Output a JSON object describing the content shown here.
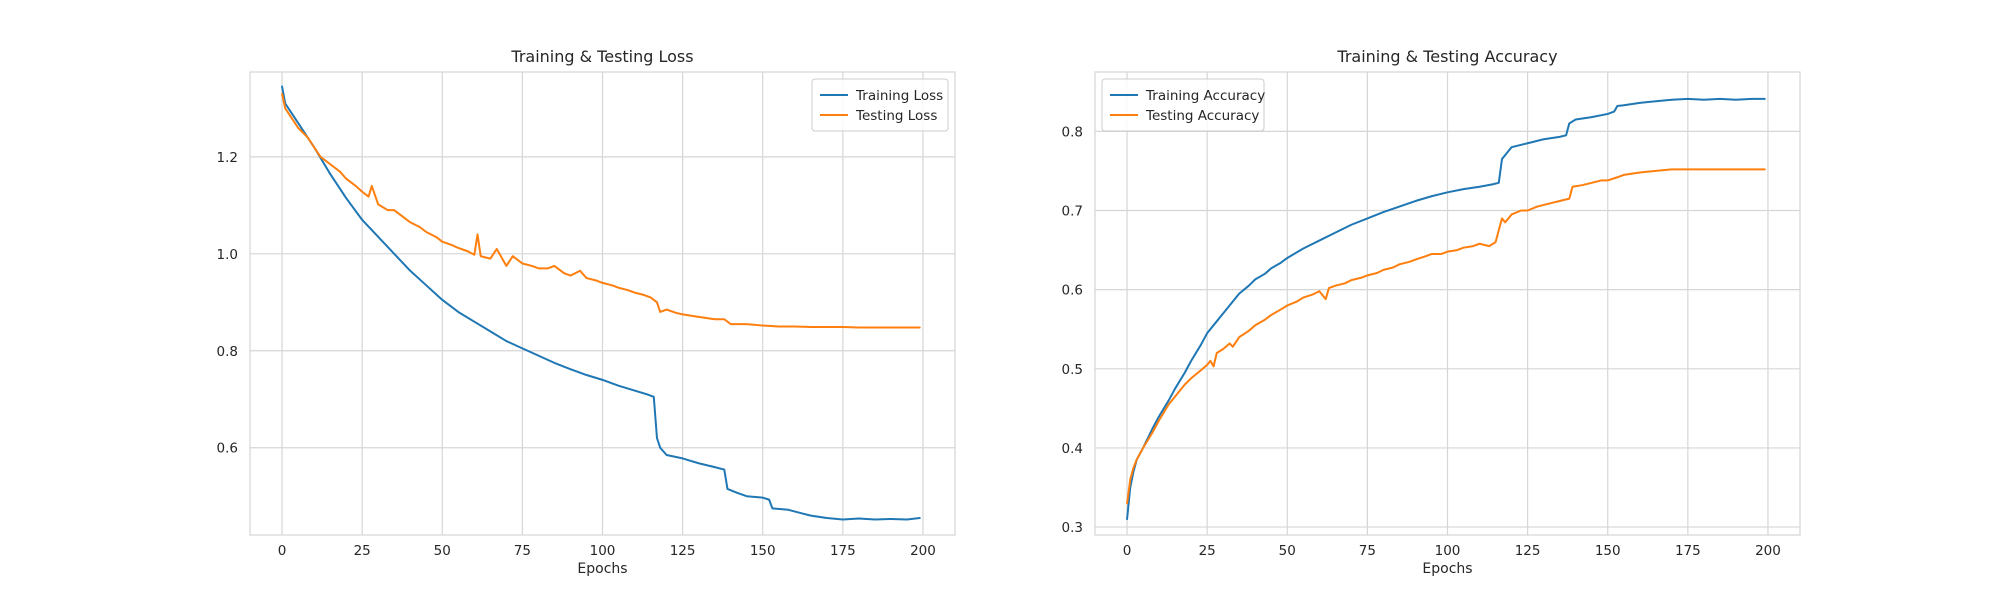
{
  "colors": {
    "training": "#1f77b4",
    "testing": "#ff7f0e",
    "grid": "#d6d6d6",
    "background": "#ffffff"
  },
  "chart_data": [
    {
      "type": "line",
      "title": "Training & Testing Loss",
      "xlabel": "Epochs",
      "ylabel": "",
      "xlim": [
        -10,
        210
      ],
      "ylim": [
        0.42,
        1.375
      ],
      "xticks": [
        0,
        25,
        50,
        75,
        100,
        125,
        150,
        175,
        200
      ],
      "yticks": [
        0.6,
        0.8,
        1.0,
        1.2
      ],
      "ytick_labels": [
        "0.6",
        "0.8",
        "1.0",
        "1.2"
      ],
      "grid": true,
      "legend": "top-right",
      "series": [
        {
          "name": "Training Loss",
          "color": "#1f77b4",
          "points": [
            [
              0,
              1.345
            ],
            [
              1,
              1.31
            ],
            [
              2,
              1.3
            ],
            [
              5,
              1.27
            ],
            [
              10,
              1.22
            ],
            [
              15,
              1.165
            ],
            [
              20,
              1.115
            ],
            [
              25,
              1.07
            ],
            [
              30,
              1.035
            ],
            [
              35,
              1.0
            ],
            [
              40,
              0.965
            ],
            [
              45,
              0.935
            ],
            [
              50,
              0.905
            ],
            [
              55,
              0.88
            ],
            [
              60,
              0.86
            ],
            [
              65,
              0.84
            ],
            [
              70,
              0.82
            ],
            [
              75,
              0.805
            ],
            [
              80,
              0.79
            ],
            [
              85,
              0.775
            ],
            [
              90,
              0.762
            ],
            [
              95,
              0.75
            ],
            [
              100,
              0.74
            ],
            [
              105,
              0.728
            ],
            [
              110,
              0.718
            ],
            [
              114,
              0.71
            ],
            [
              116,
              0.705
            ],
            [
              117,
              0.62
            ],
            [
              118,
              0.6
            ],
            [
              120,
              0.585
            ],
            [
              125,
              0.578
            ],
            [
              130,
              0.568
            ],
            [
              135,
              0.56
            ],
            [
              138,
              0.555
            ],
            [
              139,
              0.515
            ],
            [
              142,
              0.507
            ],
            [
              145,
              0.5
            ],
            [
              150,
              0.497
            ],
            [
              152,
              0.493
            ],
            [
              153,
              0.475
            ],
            [
              158,
              0.472
            ],
            [
              162,
              0.465
            ],
            [
              165,
              0.46
            ],
            [
              170,
              0.455
            ],
            [
              175,
              0.452
            ],
            [
              180,
              0.454
            ],
            [
              185,
              0.452
            ],
            [
              190,
              0.453
            ],
            [
              195,
              0.452
            ],
            [
              199,
              0.455
            ]
          ]
        },
        {
          "name": "Testing Loss",
          "color": "#ff7f0e",
          "points": [
            [
              0,
              1.33
            ],
            [
              1,
              1.3
            ],
            [
              3,
              1.28
            ],
            [
              5,
              1.26
            ],
            [
              8,
              1.24
            ],
            [
              10,
              1.22
            ],
            [
              12,
              1.2
            ],
            [
              15,
              1.185
            ],
            [
              18,
              1.17
            ],
            [
              20,
              1.155
            ],
            [
              23,
              1.14
            ],
            [
              25,
              1.128
            ],
            [
              27,
              1.118
            ],
            [
              28,
              1.14
            ],
            [
              30,
              1.102
            ],
            [
              33,
              1.09
            ],
            [
              35,
              1.09
            ],
            [
              38,
              1.075
            ],
            [
              40,
              1.065
            ],
            [
              43,
              1.055
            ],
            [
              45,
              1.045
            ],
            [
              48,
              1.035
            ],
            [
              50,
              1.025
            ],
            [
              53,
              1.018
            ],
            [
              55,
              1.012
            ],
            [
              58,
              1.005
            ],
            [
              60,
              0.998
            ],
            [
              61,
              1.04
            ],
            [
              62,
              0.995
            ],
            [
              65,
              0.99
            ],
            [
              67,
              1.01
            ],
            [
              70,
              0.975
            ],
            [
              72,
              0.995
            ],
            [
              75,
              0.98
            ],
            [
              78,
              0.975
            ],
            [
              80,
              0.97
            ],
            [
              83,
              0.97
            ],
            [
              85,
              0.975
            ],
            [
              88,
              0.96
            ],
            [
              90,
              0.955
            ],
            [
              93,
              0.965
            ],
            [
              95,
              0.95
            ],
            [
              98,
              0.945
            ],
            [
              100,
              0.94
            ],
            [
              103,
              0.935
            ],
            [
              105,
              0.93
            ],
            [
              108,
              0.925
            ],
            [
              110,
              0.92
            ],
            [
              113,
              0.915
            ],
            [
              115,
              0.91
            ],
            [
              117,
              0.9
            ],
            [
              118,
              0.88
            ],
            [
              120,
              0.885
            ],
            [
              123,
              0.878
            ],
            [
              125,
              0.875
            ],
            [
              128,
              0.872
            ],
            [
              130,
              0.87
            ],
            [
              135,
              0.865
            ],
            [
              138,
              0.865
            ],
            [
              140,
              0.855
            ],
            [
              145,
              0.855
            ],
            [
              150,
              0.852
            ],
            [
              155,
              0.85
            ],
            [
              160,
              0.85
            ],
            [
              165,
              0.849
            ],
            [
              170,
              0.849
            ],
            [
              175,
              0.849
            ],
            [
              180,
              0.848
            ],
            [
              190,
              0.848
            ],
            [
              199,
              0.848
            ]
          ]
        }
      ]
    },
    {
      "type": "line",
      "title": "Training & Testing Accuracy",
      "xlabel": "Epochs",
      "ylabel": "",
      "xlim": [
        -10,
        210
      ],
      "ylim": [
        0.29,
        0.875
      ],
      "xticks": [
        0,
        25,
        50,
        75,
        100,
        125,
        150,
        175,
        200
      ],
      "yticks": [
        0.3,
        0.4,
        0.5,
        0.6,
        0.7,
        0.8
      ],
      "ytick_labels": [
        "0.3",
        "0.4",
        "0.5",
        "0.6",
        "0.7",
        "0.8"
      ],
      "grid": true,
      "legend": "top-left",
      "series": [
        {
          "name": "Training Accuracy",
          "color": "#1f77b4",
          "points": [
            [
              0,
              0.31
            ],
            [
              1,
              0.35
            ],
            [
              2,
              0.37
            ],
            [
              3,
              0.385
            ],
            [
              5,
              0.4
            ],
            [
              8,
              0.425
            ],
            [
              10,
              0.44
            ],
            [
              13,
              0.46
            ],
            [
              15,
              0.475
            ],
            [
              18,
              0.495
            ],
            [
              20,
              0.51
            ],
            [
              23,
              0.53
            ],
            [
              25,
              0.545
            ],
            [
              28,
              0.56
            ],
            [
              30,
              0.57
            ],
            [
              33,
              0.585
            ],
            [
              35,
              0.595
            ],
            [
              38,
              0.605
            ],
            [
              40,
              0.613
            ],
            [
              43,
              0.62
            ],
            [
              45,
              0.627
            ],
            [
              48,
              0.634
            ],
            [
              50,
              0.64
            ],
            [
              55,
              0.652
            ],
            [
              60,
              0.662
            ],
            [
              65,
              0.672
            ],
            [
              70,
              0.682
            ],
            [
              75,
              0.69
            ],
            [
              80,
              0.698
            ],
            [
              85,
              0.705
            ],
            [
              90,
              0.712
            ],
            [
              95,
              0.718
            ],
            [
              100,
              0.723
            ],
            [
              105,
              0.727
            ],
            [
              110,
              0.73
            ],
            [
              114,
              0.733
            ],
            [
              116,
              0.735
            ],
            [
              117,
              0.765
            ],
            [
              119,
              0.775
            ],
            [
              120,
              0.78
            ],
            [
              125,
              0.785
            ],
            [
              130,
              0.79
            ],
            [
              135,
              0.793
            ],
            [
              137,
              0.795
            ],
            [
              138,
              0.81
            ],
            [
              140,
              0.815
            ],
            [
              145,
              0.818
            ],
            [
              150,
              0.822
            ],
            [
              152,
              0.825
            ],
            [
              153,
              0.832
            ],
            [
              155,
              0.833
            ],
            [
              160,
              0.836
            ],
            [
              165,
              0.838
            ],
            [
              170,
              0.84
            ],
            [
              175,
              0.841
            ],
            [
              180,
              0.84
            ],
            [
              185,
              0.841
            ],
            [
              190,
              0.84
            ],
            [
              195,
              0.841
            ],
            [
              199,
              0.841
            ]
          ]
        },
        {
          "name": "Testing Accuracy",
          "color": "#ff7f0e",
          "points": [
            [
              0,
              0.33
            ],
            [
              1,
              0.36
            ],
            [
              2,
              0.375
            ],
            [
              3,
              0.385
            ],
            [
              5,
              0.4
            ],
            [
              8,
              0.42
            ],
            [
              10,
              0.435
            ],
            [
              13,
              0.455
            ],
            [
              15,
              0.465
            ],
            [
              18,
              0.48
            ],
            [
              20,
              0.488
            ],
            [
              23,
              0.498
            ],
            [
              25,
              0.505
            ],
            [
              26,
              0.51
            ],
            [
              27,
              0.503
            ],
            [
              28,
              0.52
            ],
            [
              30,
              0.525
            ],
            [
              32,
              0.532
            ],
            [
              33,
              0.528
            ],
            [
              35,
              0.54
            ],
            [
              38,
              0.548
            ],
            [
              40,
              0.555
            ],
            [
              43,
              0.562
            ],
            [
              45,
              0.568
            ],
            [
              48,
              0.575
            ],
            [
              50,
              0.58
            ],
            [
              53,
              0.585
            ],
            [
              55,
              0.59
            ],
            [
              58,
              0.594
            ],
            [
              60,
              0.598
            ],
            [
              62,
              0.588
            ],
            [
              63,
              0.602
            ],
            [
              65,
              0.605
            ],
            [
              68,
              0.608
            ],
            [
              70,
              0.612
            ],
            [
              73,
              0.615
            ],
            [
              75,
              0.618
            ],
            [
              78,
              0.621
            ],
            [
              80,
              0.625
            ],
            [
              83,
              0.628
            ],
            [
              85,
              0.632
            ],
            [
              88,
              0.635
            ],
            [
              90,
              0.638
            ],
            [
              93,
              0.642
            ],
            [
              95,
              0.645
            ],
            [
              98,
              0.645
            ],
            [
              100,
              0.648
            ],
            [
              103,
              0.65
            ],
            [
              105,
              0.653
            ],
            [
              108,
              0.655
            ],
            [
              110,
              0.658
            ],
            [
              113,
              0.655
            ],
            [
              115,
              0.66
            ],
            [
              117,
              0.69
            ],
            [
              118,
              0.685
            ],
            [
              120,
              0.695
            ],
            [
              123,
              0.7
            ],
            [
              125,
              0.7
            ],
            [
              128,
              0.705
            ],
            [
              130,
              0.707
            ],
            [
              133,
              0.71
            ],
            [
              135,
              0.712
            ],
            [
              138,
              0.715
            ],
            [
              139,
              0.73
            ],
            [
              142,
              0.732
            ],
            [
              145,
              0.735
            ],
            [
              148,
              0.738
            ],
            [
              150,
              0.738
            ],
            [
              153,
              0.742
            ],
            [
              155,
              0.745
            ],
            [
              160,
              0.748
            ],
            [
              165,
              0.75
            ],
            [
              170,
              0.752
            ],
            [
              175,
              0.752
            ],
            [
              180,
              0.752
            ],
            [
              190,
              0.752
            ],
            [
              199,
              0.752
            ]
          ]
        }
      ]
    }
  ]
}
